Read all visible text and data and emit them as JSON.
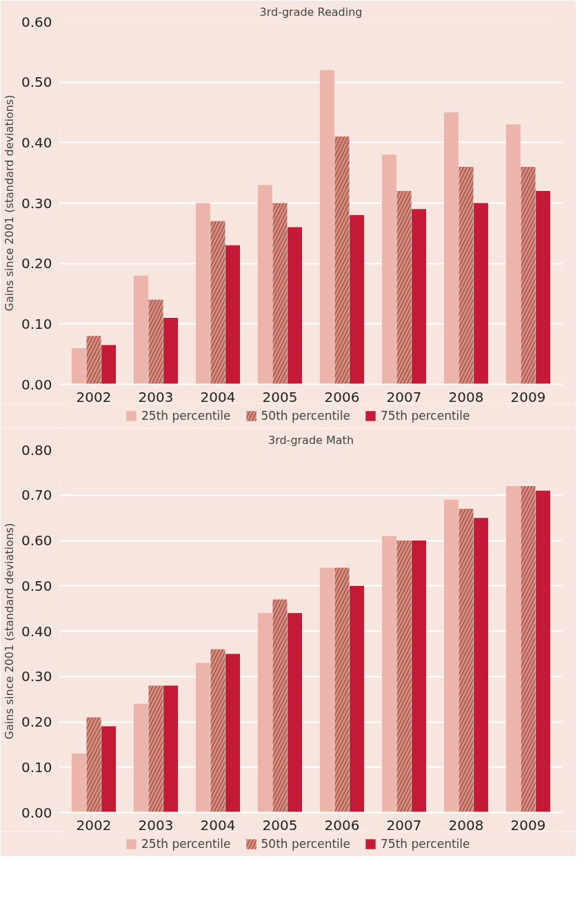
{
  "chart_data": [
    {
      "type": "bar",
      "title": "3rd-grade Reading",
      "ylabel": "Gains since 2001 (standard deviations)",
      "categories": [
        "2002",
        "2003",
        "2004",
        "2005",
        "2006",
        "2007",
        "2008",
        "2009"
      ],
      "series": [
        {
          "name": "25th percentile",
          "color": "#ebb5ab",
          "values": [
            0.06,
            0.18,
            0.3,
            0.33,
            0.52,
            0.38,
            0.45,
            0.43
          ]
        },
        {
          "name": "50th percentile",
          "color": "#e0877a",
          "values": [
            0.08,
            0.14,
            0.27,
            0.3,
            0.41,
            0.32,
            0.36,
            0.36
          ]
        },
        {
          "name": "75th percentile",
          "color": "#c41a35",
          "values": [
            0.065,
            0.11,
            0.23,
            0.26,
            0.28,
            0.29,
            0.3,
            0.32
          ]
        }
      ],
      "ylim": [
        0,
        0.6
      ],
      "yticks": [
        {
          "value": 0,
          "label": "0.00"
        },
        {
          "value": 0.1,
          "label": "0.10"
        },
        {
          "value": 0.2,
          "label": "0.20"
        },
        {
          "value": 0.3,
          "label": "0.30"
        },
        {
          "value": 0.4,
          "label": "0.40"
        },
        {
          "value": 0.5,
          "label": "0.50"
        },
        {
          "value": 0.6,
          "label": "0.60"
        }
      ],
      "grid": "y",
      "legend": "bottom"
    },
    {
      "type": "bar",
      "title": "3rd-grade Math",
      "ylabel": "Gains since 2001 (standard deviations)",
      "categories": [
        "2002",
        "2003",
        "2004",
        "2005",
        "2006",
        "2007",
        "2008",
        "2009"
      ],
      "series": [
        {
          "name": "25th percentile",
          "color": "#ebb5ab",
          "values": [
            0.13,
            0.24,
            0.33,
            0.44,
            0.54,
            0.61,
            0.69,
            0.72
          ]
        },
        {
          "name": "50th percentile",
          "color": "#e0877a",
          "values": [
            0.21,
            0.28,
            0.36,
            0.47,
            0.54,
            0.6,
            0.67,
            0.72
          ]
        },
        {
          "name": "75th percentile",
          "color": "#c41a35",
          "values": [
            0.19,
            0.28,
            0.35,
            0.44,
            0.5,
            0.6,
            0.65,
            0.71
          ]
        }
      ],
      "ylim": [
        0,
        0.8
      ],
      "yticks": [
        {
          "value": 0,
          "label": "0.00"
        },
        {
          "value": 0.1,
          "label": "0.10"
        },
        {
          "value": 0.2,
          "label": "0.20"
        },
        {
          "value": 0.3,
          "label": "0.30"
        },
        {
          "value": 0.4,
          "label": "0.40"
        },
        {
          "value": 0.5,
          "label": "0.50"
        },
        {
          "value": 0.6,
          "label": "0.60"
        },
        {
          "value": 0.7,
          "label": "0.70"
        },
        {
          "value": 0.8,
          "label": "0.80"
        }
      ],
      "grid": "y",
      "legend": "bottom"
    }
  ]
}
